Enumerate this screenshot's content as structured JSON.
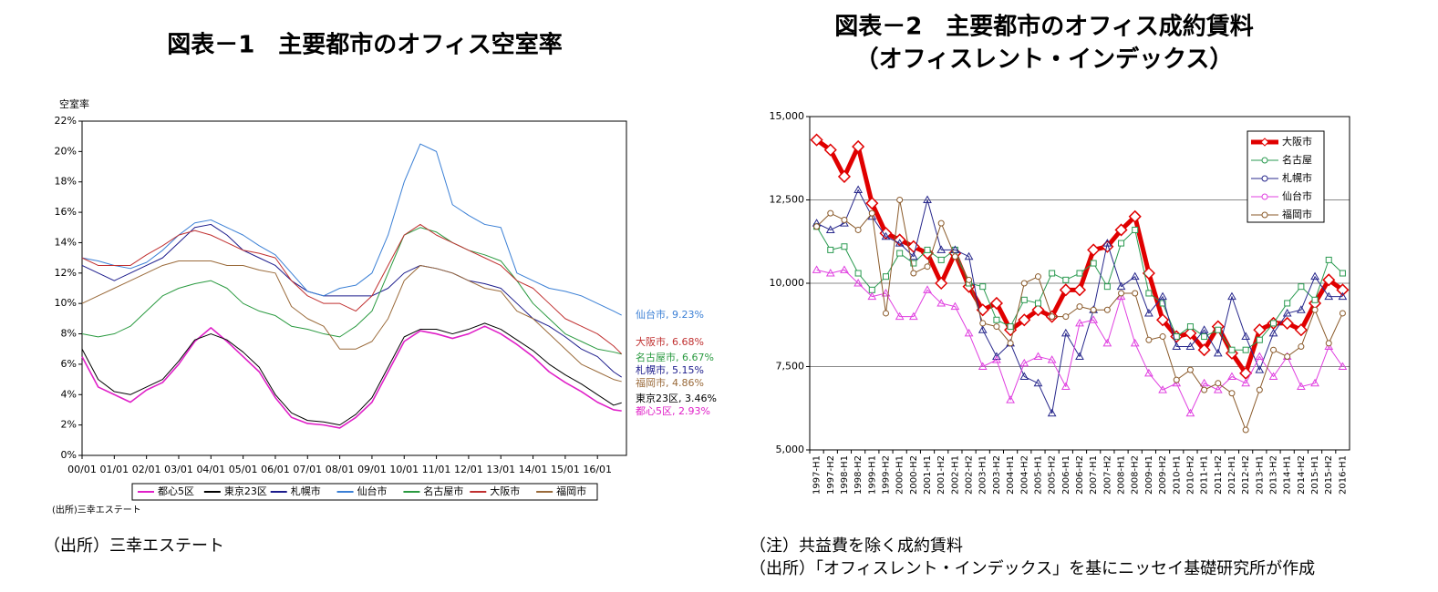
{
  "chart_data": [
    {
      "type": "line",
      "title": "図表－1　主要都市のオフィス空室率",
      "y_label": "空室率",
      "source": "(出所)三幸エステート",
      "x": [
        2000,
        2000.5,
        2001,
        2001.5,
        2002,
        2002.5,
        2003,
        2003.5,
        2004,
        2004.5,
        2005,
        2005.5,
        2006,
        2006.5,
        2007,
        2007.5,
        2008,
        2008.5,
        2009,
        2009.5,
        2010,
        2010.5,
        2011,
        2011.5,
        2012,
        2012.5,
        2013,
        2013.5,
        2014,
        2014.5,
        2015,
        2015.5,
        2016,
        2016.5,
        2016.75
      ],
      "xlim": [
        2000,
        2016.9
      ],
      "xticks": [
        {
          "value": 2000,
          "label": "00/01"
        },
        {
          "value": 2001,
          "label": "01/01"
        },
        {
          "value": 2002,
          "label": "02/01"
        },
        {
          "value": 2003,
          "label": "03/01"
        },
        {
          "value": 2004,
          "label": "04/01"
        },
        {
          "value": 2005,
          "label": "05/01"
        },
        {
          "value": 2006,
          "label": "06/01"
        },
        {
          "value": 2007,
          "label": "07/01"
        },
        {
          "value": 2008,
          "label": "08/01"
        },
        {
          "value": 2009,
          "label": "09/01"
        },
        {
          "value": 2010,
          "label": "10/01"
        },
        {
          "value": 2011,
          "label": "11/01"
        },
        {
          "value": 2012,
          "label": "12/01"
        },
        {
          "value": 2013,
          "label": "13/01"
        },
        {
          "value": 2014,
          "label": "14/01"
        },
        {
          "value": 2015,
          "label": "15/01"
        },
        {
          "value": 2016,
          "label": "16/01"
        }
      ],
      "ylim": [
        0,
        22
      ],
      "yticks": [
        {
          "value": 0,
          "label": "0%"
        },
        {
          "value": 2,
          "label": "2%"
        },
        {
          "value": 4,
          "label": "4%"
        },
        {
          "value": 6,
          "label": "6%"
        },
        {
          "value": 8,
          "label": "8%"
        },
        {
          "value": 10,
          "label": "10%"
        },
        {
          "value": 12,
          "label": "12%"
        },
        {
          "value": 14,
          "label": "14%"
        },
        {
          "value": 16,
          "label": "16%"
        },
        {
          "value": 18,
          "label": "18%"
        },
        {
          "value": 20,
          "label": "20%"
        },
        {
          "value": 22,
          "label": "22%"
        }
      ],
      "grid": false,
      "legend": "bottom",
      "series": [
        {
          "name": "都心5区",
          "color": "#e020c8",
          "values": [
            6.5,
            4.5,
            4.0,
            3.5,
            4.3,
            4.8,
            6.0,
            7.5,
            8.4,
            7.5,
            6.5,
            5.5,
            3.8,
            2.5,
            2.1,
            2.0,
            1.8,
            2.5,
            3.5,
            5.5,
            7.5,
            8.2,
            8.0,
            7.7,
            8.0,
            8.5,
            8.0,
            7.3,
            6.5,
            5.5,
            4.8,
            4.2,
            3.5,
            3.0,
            2.93
          ]
        },
        {
          "name": "東京23区",
          "color": "#000000",
          "values": [
            7.0,
            5.0,
            4.2,
            4.0,
            4.5,
            5.0,
            6.2,
            7.6,
            8.0,
            7.6,
            6.8,
            5.8,
            4.0,
            2.8,
            2.3,
            2.2,
            2.0,
            2.7,
            3.8,
            5.8,
            7.8,
            8.3,
            8.3,
            8.0,
            8.3,
            8.7,
            8.3,
            7.6,
            6.9,
            6.0,
            5.3,
            4.7,
            4.0,
            3.3,
            3.46
          ]
        },
        {
          "name": "札幌市",
          "color": "#1c1c8c",
          "values": [
            12.5,
            12,
            11.5,
            12,
            12.5,
            13,
            14,
            15,
            15.2,
            14.5,
            13.5,
            13,
            12.5,
            11.5,
            10.8,
            10.5,
            10.5,
            10.5,
            10.5,
            11,
            12,
            12.5,
            12.3,
            12,
            11.5,
            11.3,
            11,
            10,
            9,
            8.5,
            7.8,
            7,
            6.5,
            5.5,
            5.15
          ]
        },
        {
          "name": "仙台市",
          "color": "#3a7fd5",
          "values": [
            13,
            12.8,
            12.5,
            12.3,
            12.7,
            13.5,
            14.5,
            15.3,
            15.5,
            15,
            14.5,
            13.8,
            13.2,
            12,
            10.8,
            10.5,
            11,
            11.2,
            12,
            14.5,
            18,
            20.5,
            20,
            16.5,
            15.8,
            15.2,
            15,
            12,
            11.5,
            11,
            10.8,
            10.5,
            10,
            9.5,
            9.23
          ]
        },
        {
          "name": "名古屋市",
          "color": "#2a9a40",
          "values": [
            8,
            7.8,
            8,
            8.5,
            9.5,
            10.5,
            11,
            11.3,
            11.5,
            11,
            10,
            9.5,
            9.2,
            8.5,
            8.3,
            8,
            7.8,
            8.5,
            9.5,
            12,
            14.5,
            15,
            14.7,
            14,
            13.5,
            13.2,
            12.8,
            11.5,
            10,
            9,
            8,
            7.5,
            7,
            6.8,
            6.67
          ]
        },
        {
          "name": "大阪市",
          "color": "#c03030",
          "values": [
            13,
            12.5,
            12.5,
            12.5,
            13.2,
            13.8,
            14.5,
            14.8,
            14.5,
            14,
            13.5,
            13.3,
            13,
            11.5,
            10.5,
            10,
            10,
            9.5,
            10.5,
            12.5,
            14.5,
            15.2,
            14.5,
            14,
            13.5,
            13,
            12.5,
            11.5,
            11,
            10,
            9,
            8.5,
            8,
            7.2,
            6.68
          ]
        },
        {
          "name": "福岡市",
          "color": "#9a6a3a",
          "values": [
            10,
            10.5,
            11,
            11.5,
            12,
            12.5,
            12.8,
            12.8,
            12.8,
            12.5,
            12.5,
            12.2,
            12,
            9.8,
            9,
            8.5,
            7,
            7,
            7.5,
            9,
            11.5,
            12.5,
            12.3,
            12,
            11.5,
            11,
            10.8,
            9.5,
            9,
            8,
            7,
            6,
            5.5,
            5,
            4.86
          ]
        }
      ],
      "annotations": [
        {
          "text": "仙台市, 9.23%",
          "color": "#3a7fd5"
        },
        {
          "text": "大阪市, 6.68%",
          "color": "#c03030"
        },
        {
          "text": "名古屋市, 6.67%",
          "color": "#2a9a40"
        },
        {
          "text": "札幌市, 5.15%",
          "color": "#1c1c8c"
        },
        {
          "text": "福岡市, 4.86%",
          "color": "#9a6a3a"
        },
        {
          "text": "東京23区, 3.46%",
          "color": "#000000"
        },
        {
          "text": "都心5区, 2.93%",
          "color": "#e020c8"
        }
      ],
      "footnotes": [
        "（出所）三幸エステート"
      ]
    },
    {
      "type": "line",
      "title": "図表－2　主要都市のオフィス成約賃料",
      "subtitle": "（オフィスレント・インデックス）",
      "categories": [
        "1997-H1",
        "1997-H2",
        "1998-H1",
        "1998-H2",
        "1999-H1",
        "1999-H2",
        "2000-H1",
        "2000-H2",
        "2001-H1",
        "2001-H2",
        "2002-H1",
        "2002-H2",
        "2003-H1",
        "2003-H2",
        "2004-H1",
        "2004-H2",
        "2005-H1",
        "2005-H2",
        "2006-H1",
        "2006-H2",
        "2007-H1",
        "2007-H2",
        "2008-H1",
        "2008-H2",
        "2009-H1",
        "2009-H2",
        "2010-H1",
        "2010-H2",
        "2011-H1",
        "2011-H2",
        "2012-H1",
        "2012-H2",
        "2013-H1",
        "2013-H2",
        "2014-H1",
        "2014-H2",
        "2015-H1",
        "2015-H2",
        "2016-H1"
      ],
      "ylim": [
        5000,
        15000
      ],
      "yticks": [
        {
          "value": 5000,
          "label": "5,000"
        },
        {
          "value": 7500,
          "label": "7,500"
        },
        {
          "value": 10000,
          "label": "10,000"
        },
        {
          "value": 12500,
          "label": "12,500"
        },
        {
          "value": 15000,
          "label": "15,000"
        }
      ],
      "grid": true,
      "legend": "upper right",
      "series": [
        {
          "name": "大阪市",
          "color": "#e00000",
          "marker": "diamond",
          "values": [
            14300,
            14000,
            13200,
            14100,
            12400,
            11500,
            11300,
            11100,
            10900,
            10000,
            10900,
            9900,
            9200,
            9400,
            8600,
            8900,
            9200,
            9000,
            9800,
            9800,
            11000,
            11100,
            11600,
            12000,
            10300,
            8900,
            8400,
            8500,
            8000,
            8700,
            7900,
            7300,
            8600,
            8800,
            8800,
            8600,
            9400,
            10100,
            9800
          ]
        },
        {
          "name": "名古屋",
          "color": "#2a9a50",
          "marker": "square",
          "values": [
            11700,
            11000,
            11100,
            10300,
            9800,
            10200,
            10900,
            10600,
            11000,
            10700,
            11000,
            10000,
            9900,
            8900,
            8700,
            9500,
            9400,
            10300,
            10100,
            10300,
            10600,
            9900,
            11200,
            11600,
            9700,
            9400,
            8400,
            8700,
            8400,
            8600,
            8000,
            8000,
            8300,
            8800,
            9400,
            9900,
            9500,
            10700,
            10300
          ]
        },
        {
          "name": "札幌市",
          "color": "#28288c",
          "marker": "triangle",
          "values": [
            11800,
            11600,
            11800,
            12800,
            12000,
            11400,
            11200,
            10800,
            12500,
            11000,
            11000,
            10800,
            8600,
            7800,
            8200,
            7200,
            7000,
            6100,
            8500,
            7800,
            9200,
            11200,
            9900,
            10200,
            9100,
            9600,
            8100,
            8100,
            8600,
            7900,
            9600,
            8400,
            7400,
            8500,
            9100,
            9200,
            10200,
            9600,
            9600
          ]
        },
        {
          "name": "仙台市",
          "color": "#e040e0",
          "marker": "triangle",
          "values": [
            10400,
            10300,
            10400,
            10000,
            9600,
            9700,
            9000,
            9000,
            9800,
            9400,
            9300,
            8500,
            7500,
            7700,
            6500,
            7600,
            7800,
            7700,
            6900,
            8800,
            8900,
            8200,
            9600,
            8200,
            7300,
            6800,
            7000,
            6100,
            7000,
            6800,
            7200,
            7000,
            7800,
            7200,
            7800,
            6900,
            7000,
            8100,
            7500
          ]
        },
        {
          "name": "福岡市",
          "color": "#8a5a2a",
          "marker": "circle",
          "values": [
            11700,
            12100,
            11900,
            11600,
            12100,
            9100,
            12500,
            10300,
            10500,
            11800,
            10800,
            10100,
            8800,
            8700,
            8200,
            10000,
            10200,
            9000,
            9000,
            9300,
            9200,
            9200,
            9700,
            9700,
            8300,
            8400,
            7100,
            7400,
            6800,
            7000,
            6700,
            5600,
            6800,
            8000,
            7800,
            8100,
            9200,
            8200,
            9100
          ]
        }
      ],
      "footnotes": [
        "（注）共益費を除く成約賃料",
        "（出所）「オフィスレント・インデックス」を基にニッセイ基礎研究所が作成"
      ]
    }
  ]
}
